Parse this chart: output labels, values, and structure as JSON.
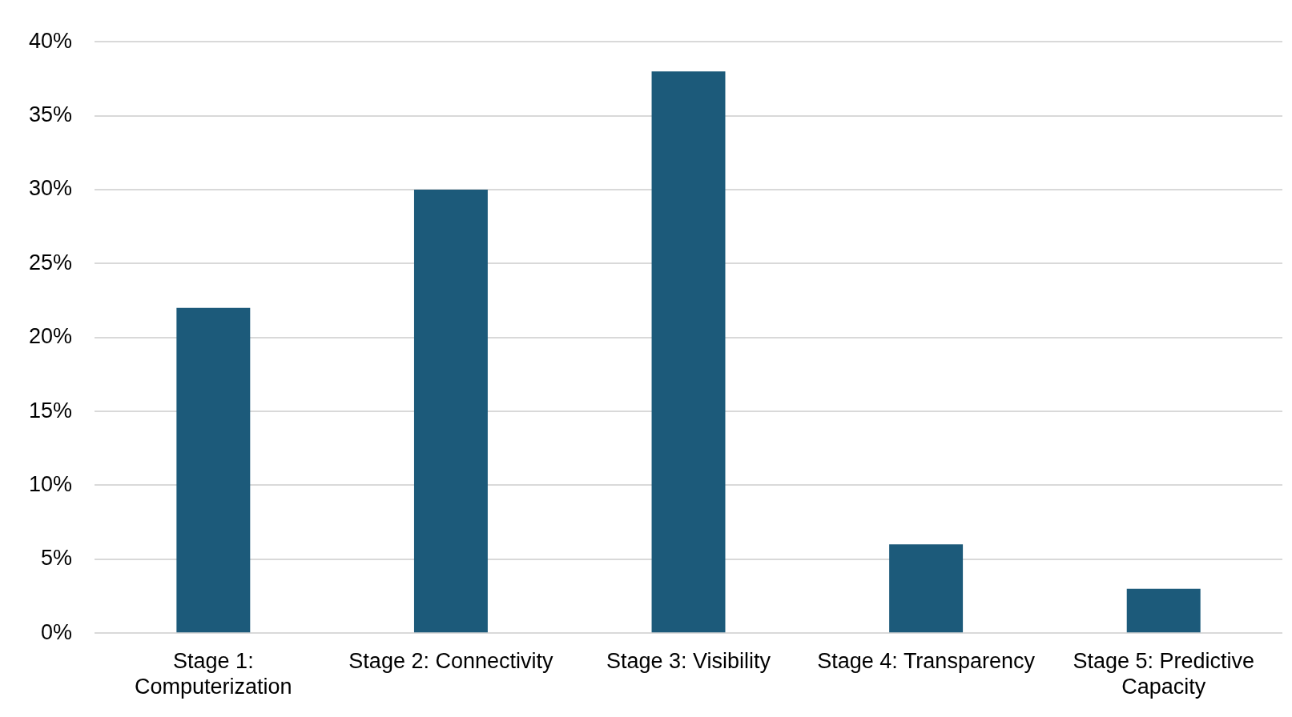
{
  "chart_data": {
    "type": "bar",
    "categories": [
      "Stage 1: Computerization",
      "Stage 2: Connectivity",
      "Stage 3: Visibility",
      "Stage 4: Transparency",
      "Stage 5: Predictive Capacity"
    ],
    "values": [
      22,
      30,
      38,
      6,
      3
    ],
    "color": "#1c5a7a",
    "ylim": [
      0,
      40
    ],
    "yticks": [
      {
        "value": 0,
        "label": "0%"
      },
      {
        "value": 5,
        "label": "5%"
      },
      {
        "value": 10,
        "label": "10%"
      },
      {
        "value": 15,
        "label": "15%"
      },
      {
        "value": 20,
        "label": "20%"
      },
      {
        "value": 25,
        "label": "25%"
      },
      {
        "value": 30,
        "label": "30%"
      },
      {
        "value": 35,
        "label": "35%"
      },
      {
        "value": 40,
        "label": "40%"
      }
    ],
    "grid": "y",
    "legend": false
  }
}
